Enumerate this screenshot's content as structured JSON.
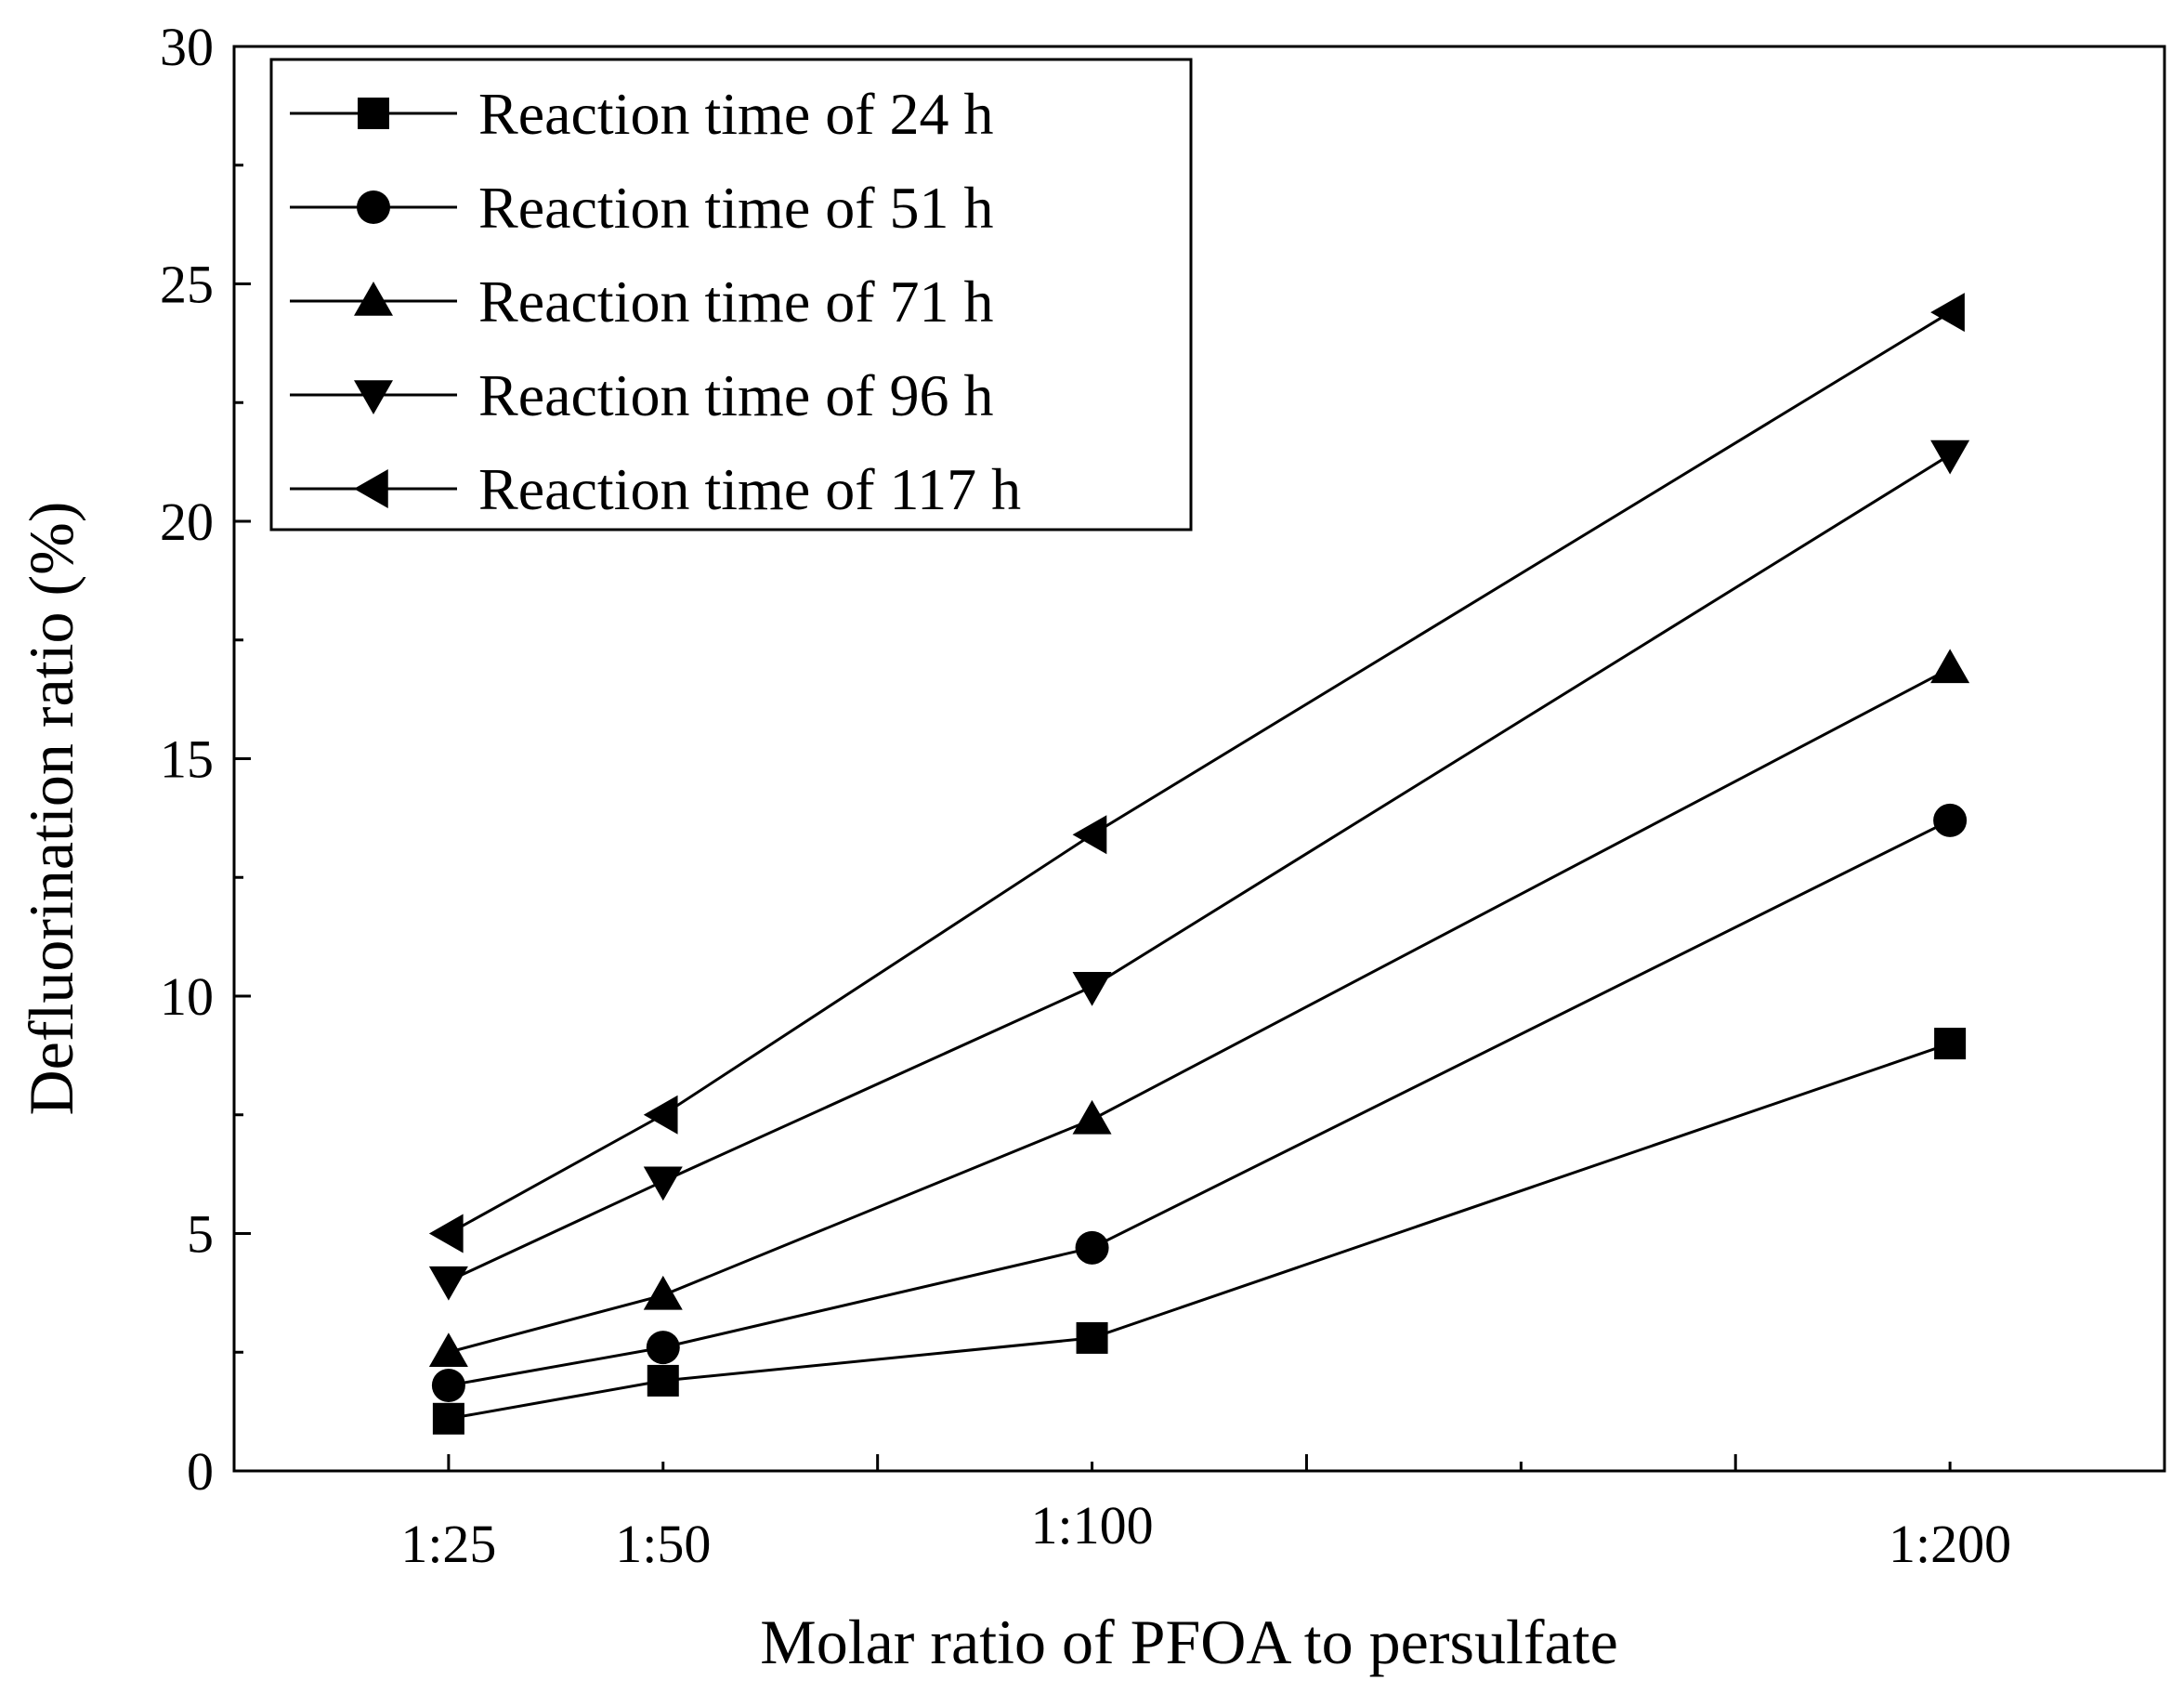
{
  "chart_data": {
    "type": "line",
    "title": "",
    "xlabel": "Molar ratio of PFOA to persulfate",
    "ylabel": "Defluorination ratio (%)",
    "x_numeric": [
      25,
      50,
      100,
      200
    ],
    "xtick_labels": [
      "1:25",
      "1:50",
      "1:100",
      "1:200"
    ],
    "xlim": [
      0,
      225
    ],
    "ylim": [
      0,
      30
    ],
    "yticks": [
      0,
      5,
      10,
      15,
      20,
      25,
      30
    ],
    "ytick_labels": [
      "0",
      "5",
      "10",
      "15",
      "20",
      "25",
      "30"
    ],
    "grid": false,
    "legend_position": "top-left",
    "series": [
      {
        "name": "Reaction time of 24 h",
        "marker": "square",
        "values": [
          1.1,
          1.9,
          2.8,
          9.0
        ]
      },
      {
        "name": "Reaction time of 51 h",
        "marker": "circle",
        "values": [
          1.8,
          2.6,
          4.7,
          13.7
        ]
      },
      {
        "name": "Reaction time of 71  h",
        "marker": "triangle-up",
        "values": [
          2.5,
          3.7,
          7.4,
          16.9
        ]
      },
      {
        "name": "Reaction time of 96 h",
        "marker": "triangle-down",
        "values": [
          4.0,
          6.1,
          10.2,
          21.4
        ]
      },
      {
        "name": "Reaction time of 117 h",
        "marker": "triangle-left",
        "values": [
          5.0,
          7.5,
          13.4,
          24.4
        ]
      }
    ],
    "colors": {
      "line": "#000000",
      "marker": "#000000",
      "background": "#ffffff"
    }
  }
}
